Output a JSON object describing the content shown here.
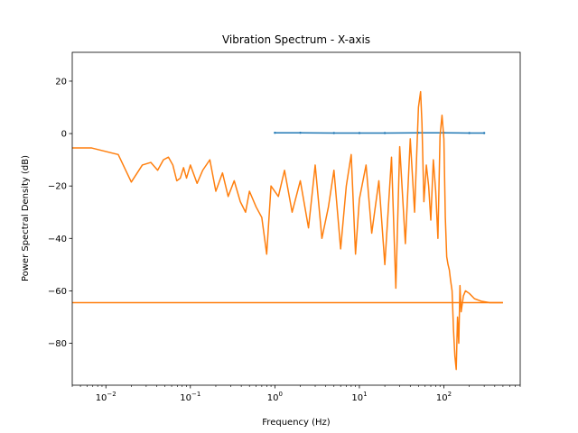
{
  "chart_data": {
    "type": "line",
    "title": "Vibration Spectrum - X-axis",
    "xlabel": "Frequency (Hz)",
    "ylabel": "Power Spectral Density (dB)",
    "xscale": "log",
    "xlim": [
      0.004,
      800
    ],
    "ylim": [
      -96,
      31
    ],
    "xticks": [
      {
        "value": 0.01,
        "base": "10",
        "exp": "−2"
      },
      {
        "value": 0.1,
        "base": "10",
        "exp": "−1"
      },
      {
        "value": 1,
        "base": "10",
        "exp": "0"
      },
      {
        "value": 10,
        "base": "10",
        "exp": "1"
      },
      {
        "value": 100,
        "base": "10",
        "exp": "2"
      }
    ],
    "yticks": [
      {
        "value": 20,
        "label": "20"
      },
      {
        "value": 0,
        "label": "0"
      },
      {
        "value": -20,
        "label": "−20"
      },
      {
        "value": -40,
        "label": "−40"
      },
      {
        "value": -60,
        "label": "−60"
      },
      {
        "value": -80,
        "label": "−80"
      }
    ],
    "grid": false,
    "series": [
      {
        "color": "#1f77b4",
        "style": "line-with-dots",
        "x": [
          1,
          2,
          5,
          10,
          20,
          50,
          100,
          200,
          300
        ],
        "y": [
          0.3,
          0.3,
          0.2,
          0.2,
          0.2,
          0.3,
          0.3,
          0.2,
          0.2
        ]
      },
      {
        "color": "#ff7f0e",
        "style": "line",
        "x": [
          0.004,
          0.0068,
          0.014,
          0.02,
          0.027,
          0.034,
          0.041,
          0.048,
          0.055,
          0.062,
          0.069,
          0.076,
          0.083,
          0.09,
          0.1,
          0.12,
          0.14,
          0.17,
          0.2,
          0.24,
          0.28,
          0.33,
          0.39,
          0.45,
          0.5,
          0.6,
          0.7,
          0.8,
          0.9,
          1.1,
          1.3,
          1.6,
          2,
          2.5,
          3,
          3.6,
          4.3,
          5,
          6,
          7,
          8,
          9,
          10,
          12,
          14,
          17,
          20,
          24,
          27,
          30,
          35,
          40,
          45,
          50,
          53,
          55,
          58,
          62,
          66,
          70,
          75,
          80,
          85,
          90,
          95,
          100,
          104,
          108,
          112,
          116,
          120,
          125,
          130,
          135,
          140,
          145,
          150,
          155,
          160,
          170,
          180,
          200,
          230,
          280,
          350,
          500
        ],
        "y": [
          -5.5,
          -5.5,
          -8,
          -18.5,
          -12,
          -11,
          -14,
          -10,
          -9,
          -12,
          -18,
          -17,
          -13,
          -17,
          -12,
          -19,
          -14,
          -10,
          -22,
          -15,
          -24,
          -18,
          -26,
          -30,
          -22,
          -28,
          -32,
          -46,
          -20,
          -24,
          -14,
          -30,
          -18,
          -36,
          -12,
          -40,
          -28,
          -14,
          -44,
          -20,
          -8,
          -46,
          -25,
          -12,
          -38,
          -18,
          -50,
          -9,
          -59,
          -5,
          -42,
          -2,
          -30,
          10,
          16,
          4,
          -26,
          -12,
          -20,
          -33,
          -10,
          -22,
          -40,
          -1,
          7,
          -2,
          -32,
          -47,
          -50,
          -52,
          -56,
          -60,
          -75,
          -85,
          -90,
          -70,
          -80,
          -58,
          -68,
          -62,
          -60,
          -61,
          -63,
          -64,
          -64.5,
          -64.5
        ]
      },
      {
        "color": "#ff7f0e",
        "style": "line",
        "x": [
          0.004,
          500
        ],
        "y": [
          -64.5,
          -64.5
        ]
      }
    ]
  }
}
